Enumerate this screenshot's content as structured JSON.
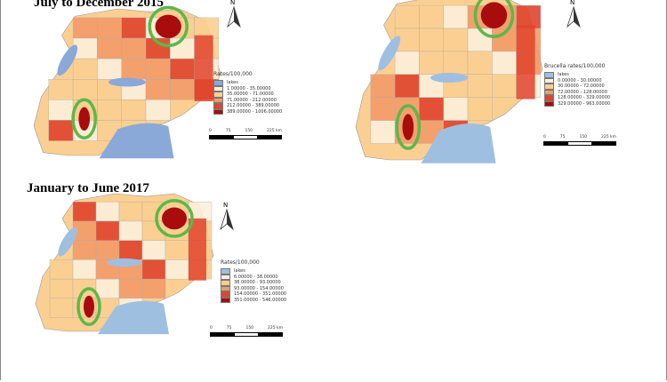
{
  "panels": [
    {
      "title": "July to December 2015",
      "legend_title": "Rates/100,000",
      "classes": [
        "lakes",
        "1.00000 - 35.00000",
        "35.00000 - 71.00000",
        "71.00000 - 212.00000",
        "212.00000 - 389.00000",
        "389.00000 - 1006.00000"
      ],
      "scale": [
        "0",
        "75",
        "150",
        "225 km"
      ],
      "north": "N"
    },
    {
      "title": "",
      "legend_title": "Brucella rates/100,000",
      "classes": [
        "lakes",
        "0.00000 - 30.00000",
        "30.00000 - 72.00000",
        "72.00000 - 128.00000",
        "128.00000 - 329.00000",
        "329.00000 - 963.00000"
      ],
      "scale": [
        "0",
        "75",
        "150",
        "225 km"
      ],
      "north": "N"
    },
    {
      "title": "January to June 2017",
      "legend_title": "Rates/100,000",
      "classes": [
        "lakes",
        "6.00000 - 38.00000",
        "38.00000 - 93.00000",
        "93.00000 - 154.00000",
        "154.00000 - 351.00000",
        "351.00000 - 546.00000"
      ],
      "scale": [
        "0",
        "75",
        "150",
        "225 km"
      ],
      "north": "N"
    }
  ],
  "colors": {
    "lakes": "#9fbfe0",
    "c1": "#fdf0dc",
    "c2": "#fbcf92",
    "c3": "#f49b6a",
    "c4": "#e0442d",
    "c5": "#a80c0c",
    "highlight": "#5cb848"
  }
}
